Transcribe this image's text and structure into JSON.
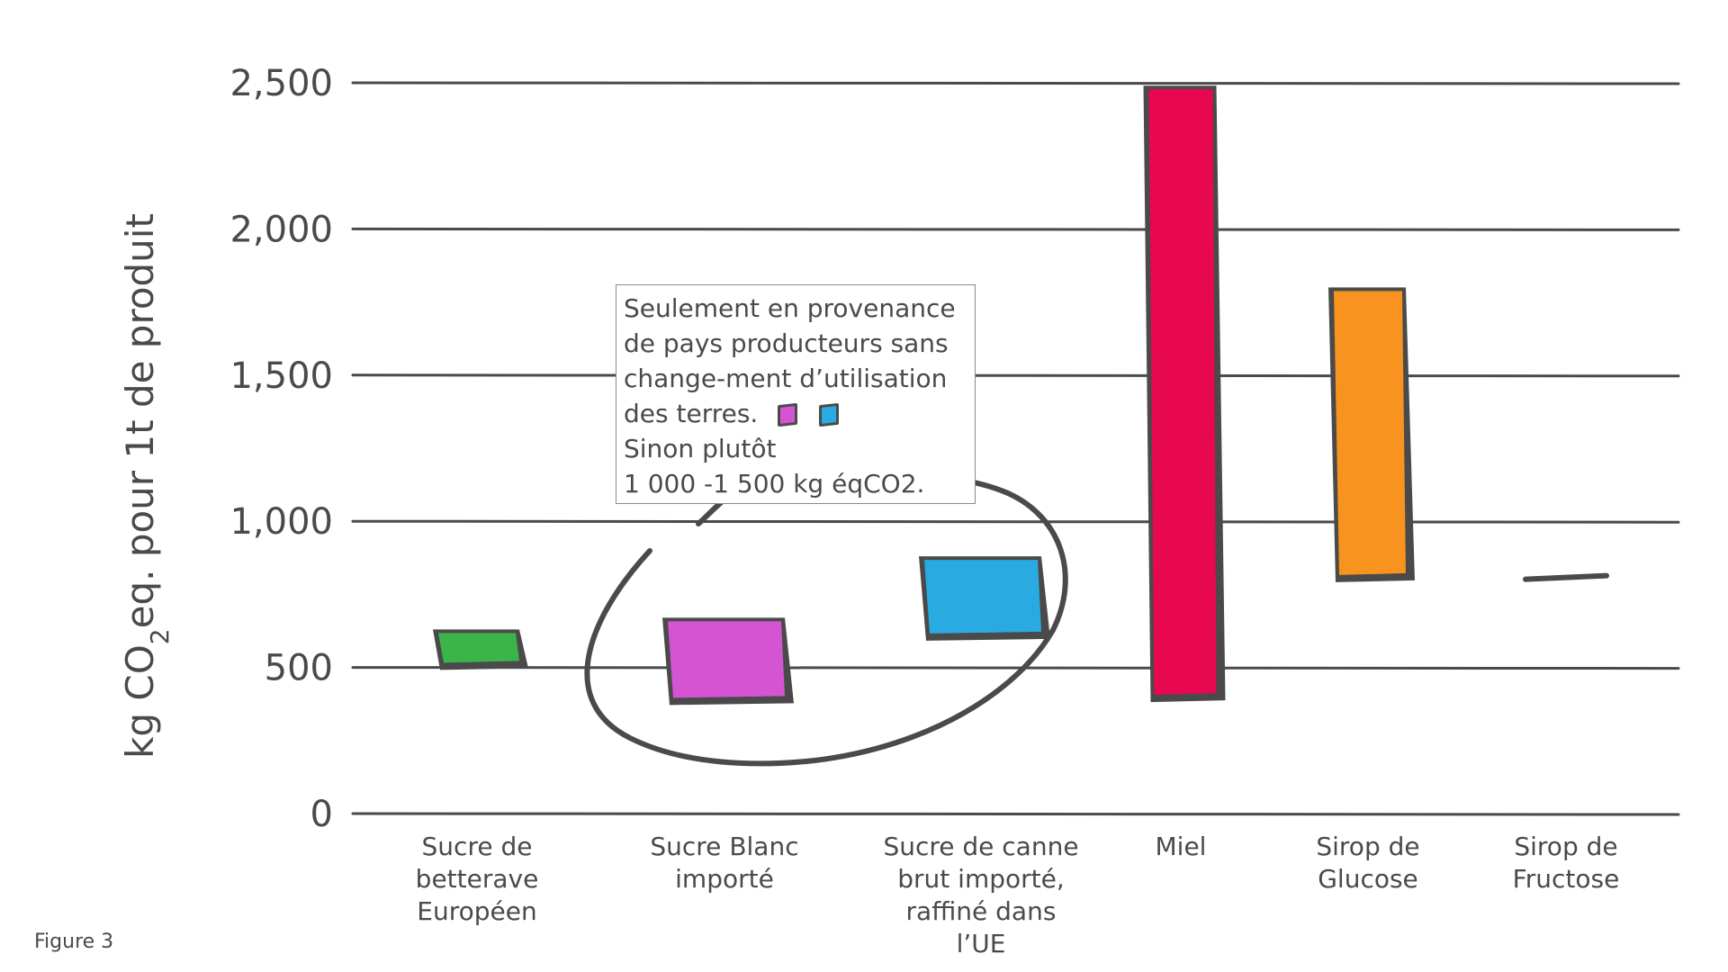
{
  "chart_data": {
    "type": "bar",
    "subtype": "floating-range",
    "ylabel_parts": [
      "kg CO",
      "2",
      "eq. pour 1t de produit"
    ],
    "yticks": [
      "0",
      "500",
      "1,000",
      "1,500",
      "2,000",
      "2,500"
    ],
    "ytick_values": [
      0,
      500,
      1000,
      1500,
      2000,
      2500
    ],
    "ylim": [
      0,
      2500
    ],
    "grid": true,
    "categories": [
      {
        "label_lines": [
          "Sucre de",
          "betterave",
          "Européen"
        ],
        "low": 510,
        "high": 630,
        "color": "#3bb54a"
      },
      {
        "label_lines": [
          "Sucre Blanc",
          "importé"
        ],
        "low": 390,
        "high": 670,
        "color": "#d454d4"
      },
      {
        "label_lines": [
          "Sucre de canne",
          "brut importé,",
          "raffiné dans",
          "l’UE"
        ],
        "low": 610,
        "high": 880,
        "color": "#29abe2"
      },
      {
        "label_lines": [
          "Miel"
        ],
        "low": 400,
        "high": 2490,
        "color": "#e8084f"
      },
      {
        "label_lines": [
          "Sirop de",
          "Glucose"
        ],
        "low": 810,
        "high": 1800,
        "color": "#f7931e"
      },
      {
        "label_lines": [
          "Sirop de",
          "Fructose"
        ],
        "low": 810,
        "high": 820,
        "color": "#4a4a4a"
      }
    ],
    "annotation": {
      "lines": [
        "Seulement en provenance",
        "de pays producteurs sans",
        "change-ment d’utilisation",
        "des terres.",
        "Sinon plutôt",
        "1 000 -1 500 kg éqCO2."
      ],
      "swatch_colors": [
        "#d454d4",
        "#29abe2"
      ],
      "highlighted_categories": [
        "Sucre Blanc importé",
        "Sucre de canne brut importé, raffiné dans l’UE"
      ]
    }
  },
  "caption": "Figure 3",
  "colors": {
    "ink": "#4a4a4a",
    "grid": "#4a4a4a",
    "background": "#ffffff"
  }
}
